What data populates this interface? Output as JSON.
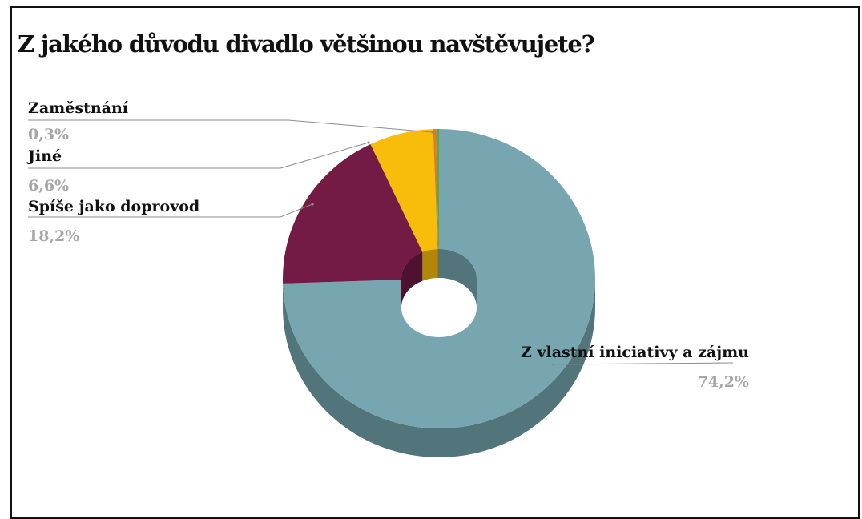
{
  "chart_data": {
    "type": "pie",
    "variant": "3d-donut",
    "title": "Z jakého důvodu divadlo většinou navštěvujete?",
    "slices": [
      {
        "label": "Z vlastní iniciativy a zájmu",
        "value": 74.2,
        "value_label": "74,2%",
        "color": "#78a6b0",
        "side_color": "#52757b"
      },
      {
        "label": "Spíše jako doprovod",
        "value": 18.2,
        "value_label": "18,2%",
        "color": "#731a45",
        "side_color": "#4e1230"
      },
      {
        "label": "Jiné",
        "value": 6.6,
        "value_label": "6,6%",
        "color": "#f8bd0b",
        "side_color": "#b08707"
      },
      {
        "label": "Zaměstnání",
        "value": 0.3,
        "value_label": "0,3%",
        "color": "#e07b1e",
        "side_color": "#9d5514"
      },
      {
        "label": "",
        "value": 0.3,
        "value_label": "",
        "color": "#5aa84a",
        "side_color": "#3f7634"
      }
    ],
    "legend": "none"
  }
}
